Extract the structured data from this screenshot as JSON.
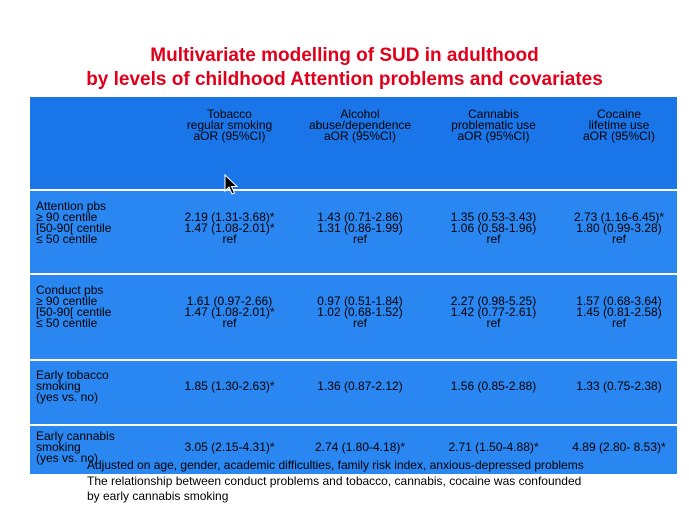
{
  "title": {
    "line1": "Multivariate modelling of SUD in adulthood",
    "line2": "by levels of childhood Attention problems and covariates"
  },
  "table": {
    "columns": [
      {
        "line1": "Tobacco",
        "line2": "regular smoking",
        "line3": "aOR (95%CI)"
      },
      {
        "line1": "Alcohol",
        "line2": "abuse/dependence",
        "line3": "aOR (95%CI)"
      },
      {
        "line1": "Cannabis",
        "line2": "problematic use",
        "line3": "aOR (95%CI)"
      },
      {
        "line1": "Cocaine",
        "line2": "lifetime use",
        "line3": "aOR (95%CI)"
      }
    ],
    "groups": [
      {
        "label": [
          "Attention pbs",
          "≥ 90 centile",
          "[50-90[ centile",
          "≤ 50 centile"
        ],
        "values": [
          [
            "2.19 (1.31-3.68)*",
            "1.47 (1.08-2.01)*",
            "ref"
          ],
          [
            "1.43 (0.71-2.86)",
            "1.31 (0.86-1.99)",
            "ref"
          ],
          [
            "1.35 (0.53-3.43)",
            "1.06 (0.58-1.96)",
            "ref"
          ],
          [
            "2.73 (1.16-6.45)*",
            "1.80 (0.99-3.28)",
            "ref"
          ]
        ]
      },
      {
        "label": [
          "Conduct pbs",
          "≥ 90 centile",
          "[50-90[ centile",
          "≤ 50 centile"
        ],
        "values": [
          [
            "1.61 (0.97-2.66)",
            "1.47 (1.08-2.01)*",
            "ref"
          ],
          [
            "0.97 (0.51-1.84)",
            "1.02 (0.68-1.52)",
            "ref"
          ],
          [
            "2.27 (0.98-5.25)",
            "1.42 (0.77-2.61)",
            "ref"
          ],
          [
            "1.57 (0.68-3.64)",
            "1.45 (0.81-2.58)",
            "ref"
          ]
        ]
      },
      {
        "label": [
          "Early tobacco",
          "smoking",
          "(yes vs. no)"
        ],
        "values": [
          [
            "1.85 (1.30-2.63)*"
          ],
          [
            "1.36 (0.87-2.12)"
          ],
          [
            "1.56 (0.85-2.88)"
          ],
          [
            "1.33 (0.75-2.38)"
          ]
        ]
      },
      {
        "label": [
          "Early cannabis",
          "smoking",
          "(yes vs. no)"
        ],
        "values": [
          [
            "3.05 (2.15-4.31)*"
          ],
          [
            "2.74 (1.80-4.18)*"
          ],
          [
            "2.71 (1.50-4.88)*"
          ],
          [
            "4.89 (2.80- 8.53)*"
          ]
        ]
      }
    ]
  },
  "notes": {
    "line1": "Adjusted on age, gender, academic difficulties, family risk index, anxious-depressed problems",
    "line2": "The relationship between conduct problems and tobacco, cannabis, cocaine was confounded",
    "line3": "by early cannabis smoking"
  },
  "colors": {
    "title": "#e0001b",
    "header_bg": "#1a76e8",
    "row_bg": "#2a86f0"
  }
}
